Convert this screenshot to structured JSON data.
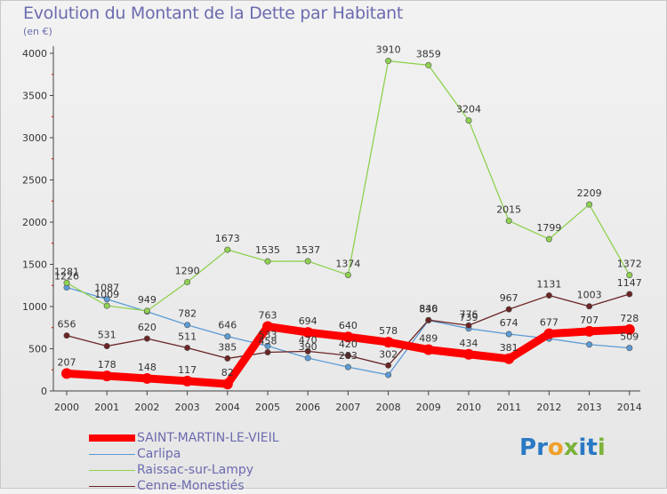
{
  "title": "Evolution du Montant de la Dette par Habitant",
  "unit": "(en €)",
  "logo": {
    "text": [
      "P",
      "r",
      "o",
      "x",
      "i",
      "t",
      "i"
    ],
    "colors": [
      "#2a79c4",
      "#2a79c4",
      "#f0a02a",
      "#7cb23a",
      "#2a79c4",
      "#2a79c4",
      "#7cb23a"
    ]
  },
  "chart_data": {
    "type": "line",
    "x": [
      "2000",
      "2001",
      "2002",
      "2003",
      "2004",
      "2005",
      "2006",
      "2007",
      "2008",
      "2009",
      "2010",
      "2011",
      "2012",
      "2013",
      "2014"
    ],
    "ylim": [
      0,
      4000
    ],
    "yticks": [
      0,
      500,
      1000,
      1500,
      2000,
      2500,
      3000,
      3500,
      4000
    ],
    "grid": false,
    "legend_position": "bottom-left",
    "series": [
      {
        "name": "Carlipa",
        "color": "#5b9bd5",
        "values": [
          1226,
          1087,
          940,
          782,
          646,
          533,
          390,
          283,
          190,
          836,
          739,
          674,
          620,
          550,
          509
        ],
        "labels": [
          "1226",
          "1087",
          "",
          "782",
          "646",
          "533",
          "390",
          "283",
          "",
          "836",
          "739",
          "674",
          "",
          "",
          "509"
        ]
      },
      {
        "name": "Raissac-sur-Lampy",
        "color": "#8fd14f",
        "values": [
          1281,
          1009,
          949,
          1290,
          1673,
          1535,
          1537,
          1374,
          3910,
          3859,
          3204,
          2015,
          1799,
          2209,
          1372
        ],
        "labels": [
          "1281",
          "1009",
          "949",
          "1290",
          "1673",
          "1535",
          "1537",
          "1374",
          "3910",
          "3859",
          "3204",
          "2015",
          "1799",
          "2209",
          "1372"
        ]
      },
      {
        "name": "Cenne-Monestiés",
        "color": "#6b2424",
        "values": [
          656,
          531,
          620,
          511,
          385,
          458,
          470,
          420,
          302,
          840,
          776,
          967,
          1131,
          1003,
          1147
        ],
        "labels": [
          "656",
          "531",
          "620",
          "511",
          "385",
          "458",
          "470",
          "420",
          "302",
          "840",
          "776",
          "967",
          "1131",
          "1003",
          "1147"
        ]
      },
      {
        "name": "SAINT-MARTIN-LE-VIEIL",
        "color": "#ff0000",
        "values": [
          207,
          178,
          148,
          117,
          82,
          763,
          694,
          640,
          578,
          489,
          434,
          381,
          677,
          707,
          728
        ],
        "labels": [
          "207",
          "178",
          "148",
          "117",
          "82",
          "763",
          "694",
          "640",
          "578",
          "489",
          "434",
          "381",
          "677",
          "707",
          "728"
        ]
      }
    ],
    "legend_order": [
      "SAINT-MARTIN-LE-VIEIL",
      "Carlipa",
      "Raissac-sur-Lampy",
      "Cenne-Monestiés"
    ]
  }
}
